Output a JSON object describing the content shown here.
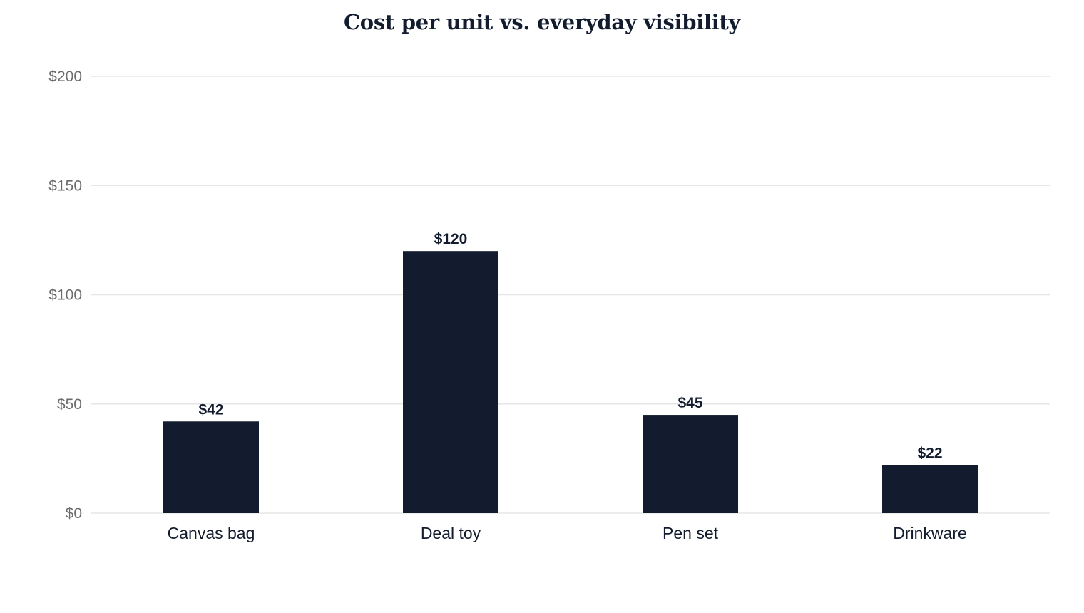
{
  "chart_data": {
    "type": "bar",
    "title": "Cost per unit vs. everyday visibility",
    "xlabel": "",
    "ylabel": "",
    "categories": [
      "Canvas bag",
      "Deal toy",
      "Pen set",
      "Drinkware"
    ],
    "values": [
      42,
      120,
      45,
      22
    ],
    "data_labels": [
      "$42",
      "$120",
      "$45",
      "$22"
    ],
    "ylim": [
      0,
      200
    ],
    "yticks": [
      0,
      50,
      100,
      150,
      200
    ],
    "ytick_labels": [
      "$0",
      "$50",
      "$100",
      "$150",
      "$200"
    ],
    "grid": true,
    "legend": "none",
    "bar_color": "#121c2e"
  }
}
